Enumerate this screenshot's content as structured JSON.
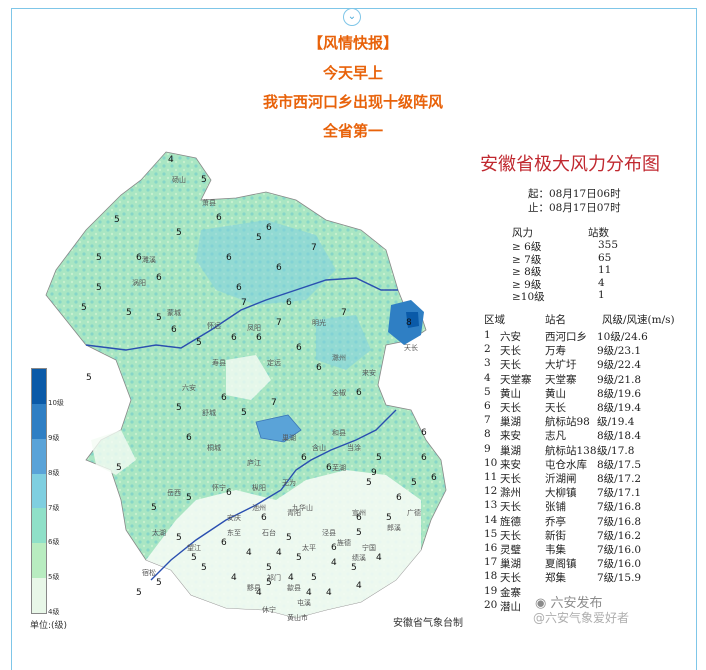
{
  "header": {
    "toggle_icon": "chevron-down-icon",
    "line1": "【风情快报】",
    "line2": "今天早上",
    "line3": "我市西河口乡出现十级阵风",
    "line4": "全省第一"
  },
  "map": {
    "title": "安徽省极大风力分布图",
    "start": "起：08月17日06时",
    "end": "止：08月17日07时",
    "stats_header": {
      "level": "风力",
      "count": "站数"
    },
    "stats": [
      {
        "level": "≥ 6级",
        "count": "355"
      },
      {
        "level": "≥ 7级",
        "count": "65"
      },
      {
        "level": "≥ 8级",
        "count": "11"
      },
      {
        "level": "≥ 9级",
        "count": "4"
      },
      {
        "level": "≥10级",
        "count": "1"
      }
    ],
    "rank_header": {
      "area": "区域",
      "station": "站名",
      "value": "风级/风速(m/s)"
    },
    "ranking": [
      {
        "no": "1",
        "area": "六安",
        "station": "西河口乡",
        "value": "10级/24.6"
      },
      {
        "no": "2",
        "area": "天长",
        "station": "万寿",
        "value": "9级/23.1"
      },
      {
        "no": "3",
        "area": "天长",
        "station": "大圹圩",
        "value": "9级/22.4"
      },
      {
        "no": "4",
        "area": "天堂寨",
        "station": "天堂寨",
        "value": "9级/21.8"
      },
      {
        "no": "5",
        "area": "黄山",
        "station": "黄山",
        "value": "8级/19.6"
      },
      {
        "no": "6",
        "area": "天长",
        "station": "天长",
        "value": "8级/19.4"
      },
      {
        "no": "7",
        "area": "巢湖",
        "station": "航标站98",
        "value": "级/19.4"
      },
      {
        "no": "8",
        "area": "来安",
        "station": "志凡",
        "value": "8级/18.4"
      },
      {
        "no": "9",
        "area": "巢湖",
        "station": "航标站138",
        "value": "级/17.8"
      },
      {
        "no": "10",
        "area": "来安",
        "station": "屯仓水库",
        "value": "8级/17.5"
      },
      {
        "no": "11",
        "area": "天长",
        "station": "沂湖闸",
        "value": "8级/17.2"
      },
      {
        "no": "12",
        "area": "滁州",
        "station": "大柳镇",
        "value": "7级/17.1"
      },
      {
        "no": "13",
        "area": "天长",
        "station": "张铺",
        "value": "7级/16.8"
      },
      {
        "no": "14",
        "area": "旌德",
        "station": "乔亭",
        "value": "7级/16.8"
      },
      {
        "no": "15",
        "area": "天长",
        "station": "新街",
        "value": "7级/16.2"
      },
      {
        "no": "16",
        "area": "灵璧",
        "station": "韦集",
        "value": "7级/16.0"
      },
      {
        "no": "17",
        "area": "巢湖",
        "station": "夏阁镇",
        "value": "7级/16.0"
      },
      {
        "no": "18",
        "area": "天长",
        "station": "郑集",
        "value": "7级/15.9"
      },
      {
        "no": "19",
        "area": "金寨",
        "station": "",
        "value": ""
      },
      {
        "no": "20",
        "area": "潜山",
        "station": "",
        "value": ""
      }
    ],
    "legend": {
      "labels": [
        "10级",
        "9级",
        "8级",
        "7级",
        "6级",
        "5级",
        "4级"
      ],
      "colors": [
        "#0a5aa8",
        "#2f7fc4",
        "#5aa3d8",
        "#7fcfe0",
        "#8fe0c8",
        "#b8ecc0",
        "#e8f7e8"
      ],
      "unit": "单位:(级)"
    },
    "agency": "安徽省气象台制",
    "watermark": "六安发布",
    "watermark2": "@六安气象爱好者",
    "watermark_icon": "weibo-icon",
    "station_numbers": [
      {
        "v": "4"
      },
      {
        "v": "5"
      },
      {
        "v": "5"
      },
      {
        "v": "6"
      },
      {
        "v": "5"
      },
      {
        "v": "5"
      },
      {
        "v": "6"
      },
      {
        "v": "6"
      },
      {
        "v": "5"
      },
      {
        "v": "5"
      },
      {
        "v": "5"
      },
      {
        "v": "5"
      },
      {
        "v": "6"
      },
      {
        "v": "6"
      },
      {
        "v": "5"
      },
      {
        "v": "6"
      },
      {
        "v": "6"
      },
      {
        "v": "7"
      },
      {
        "v": "6"
      },
      {
        "v": "6"
      },
      {
        "v": "7"
      },
      {
        "v": "5"
      },
      {
        "v": "6"
      },
      {
        "v": "6"
      },
      {
        "v": "6"
      },
      {
        "v": "7"
      },
      {
        "v": "7"
      },
      {
        "v": "5"
      },
      {
        "v": "5"
      },
      {
        "v": "6"
      },
      {
        "v": "7"
      },
      {
        "v": "6"
      },
      {
        "v": "8"
      },
      {
        "v": "6"
      },
      {
        "v": "5"
      },
      {
        "v": "6"
      },
      {
        "v": "5"
      },
      {
        "v": "6"
      },
      {
        "v": "6"
      },
      {
        "v": "5"
      },
      {
        "v": "5"
      },
      {
        "v": "5"
      },
      {
        "v": "6"
      },
      {
        "v": "9"
      },
      {
        "v": "6"
      },
      {
        "v": "6"
      },
      {
        "v": "5"
      },
      {
        "v": "6"
      },
      {
        "v": "6"
      },
      {
        "v": "5"
      },
      {
        "v": "5"
      },
      {
        "v": "5"
      },
      {
        "v": "5"
      },
      {
        "v": "5"
      },
      {
        "v": "5"
      },
      {
        "v": "5"
      },
      {
        "v": "6"
      },
      {
        "v": "5"
      },
      {
        "v": "5"
      },
      {
        "v": "5"
      },
      {
        "v": "4"
      },
      {
        "v": "5"
      },
      {
        "v": "4"
      },
      {
        "v": "4"
      },
      {
        "v": "5"
      },
      {
        "v": "4"
      },
      {
        "v": "4"
      },
      {
        "v": "4"
      },
      {
        "v": "5"
      },
      {
        "v": "6"
      },
      {
        "v": "6"
      },
      {
        "v": "6"
      },
      {
        "v": "5"
      },
      {
        "v": "4"
      },
      {
        "v": "4"
      },
      {
        "v": "4"
      },
      {
        "v": "4"
      }
    ],
    "city_labels": [
      "砀山",
      "萧县",
      "濉溪",
      "涡阳",
      "蒙城",
      "怀远",
      "凤阳",
      "明光",
      "定远",
      "寿县",
      "六安",
      "舒城",
      "桐城",
      "岳西",
      "太湖",
      "宿松",
      "望江",
      "怀宁",
      "东至",
      "石台",
      "九华山",
      "祁门",
      "黟县",
      "歙县",
      "屯溪",
      "休宁",
      "黄山市",
      "宁国",
      "广德",
      "郎溪",
      "宣州",
      "芜湖",
      "当涂",
      "含山",
      "和县",
      "全椒",
      "来安",
      "天长",
      "滁州",
      "巢湖",
      "庐江",
      "无为",
      "枞阳",
      "安庆",
      "池州",
      "青阳",
      "泾县",
      "旌德",
      "绩溪",
      "太平"
    ]
  }
}
